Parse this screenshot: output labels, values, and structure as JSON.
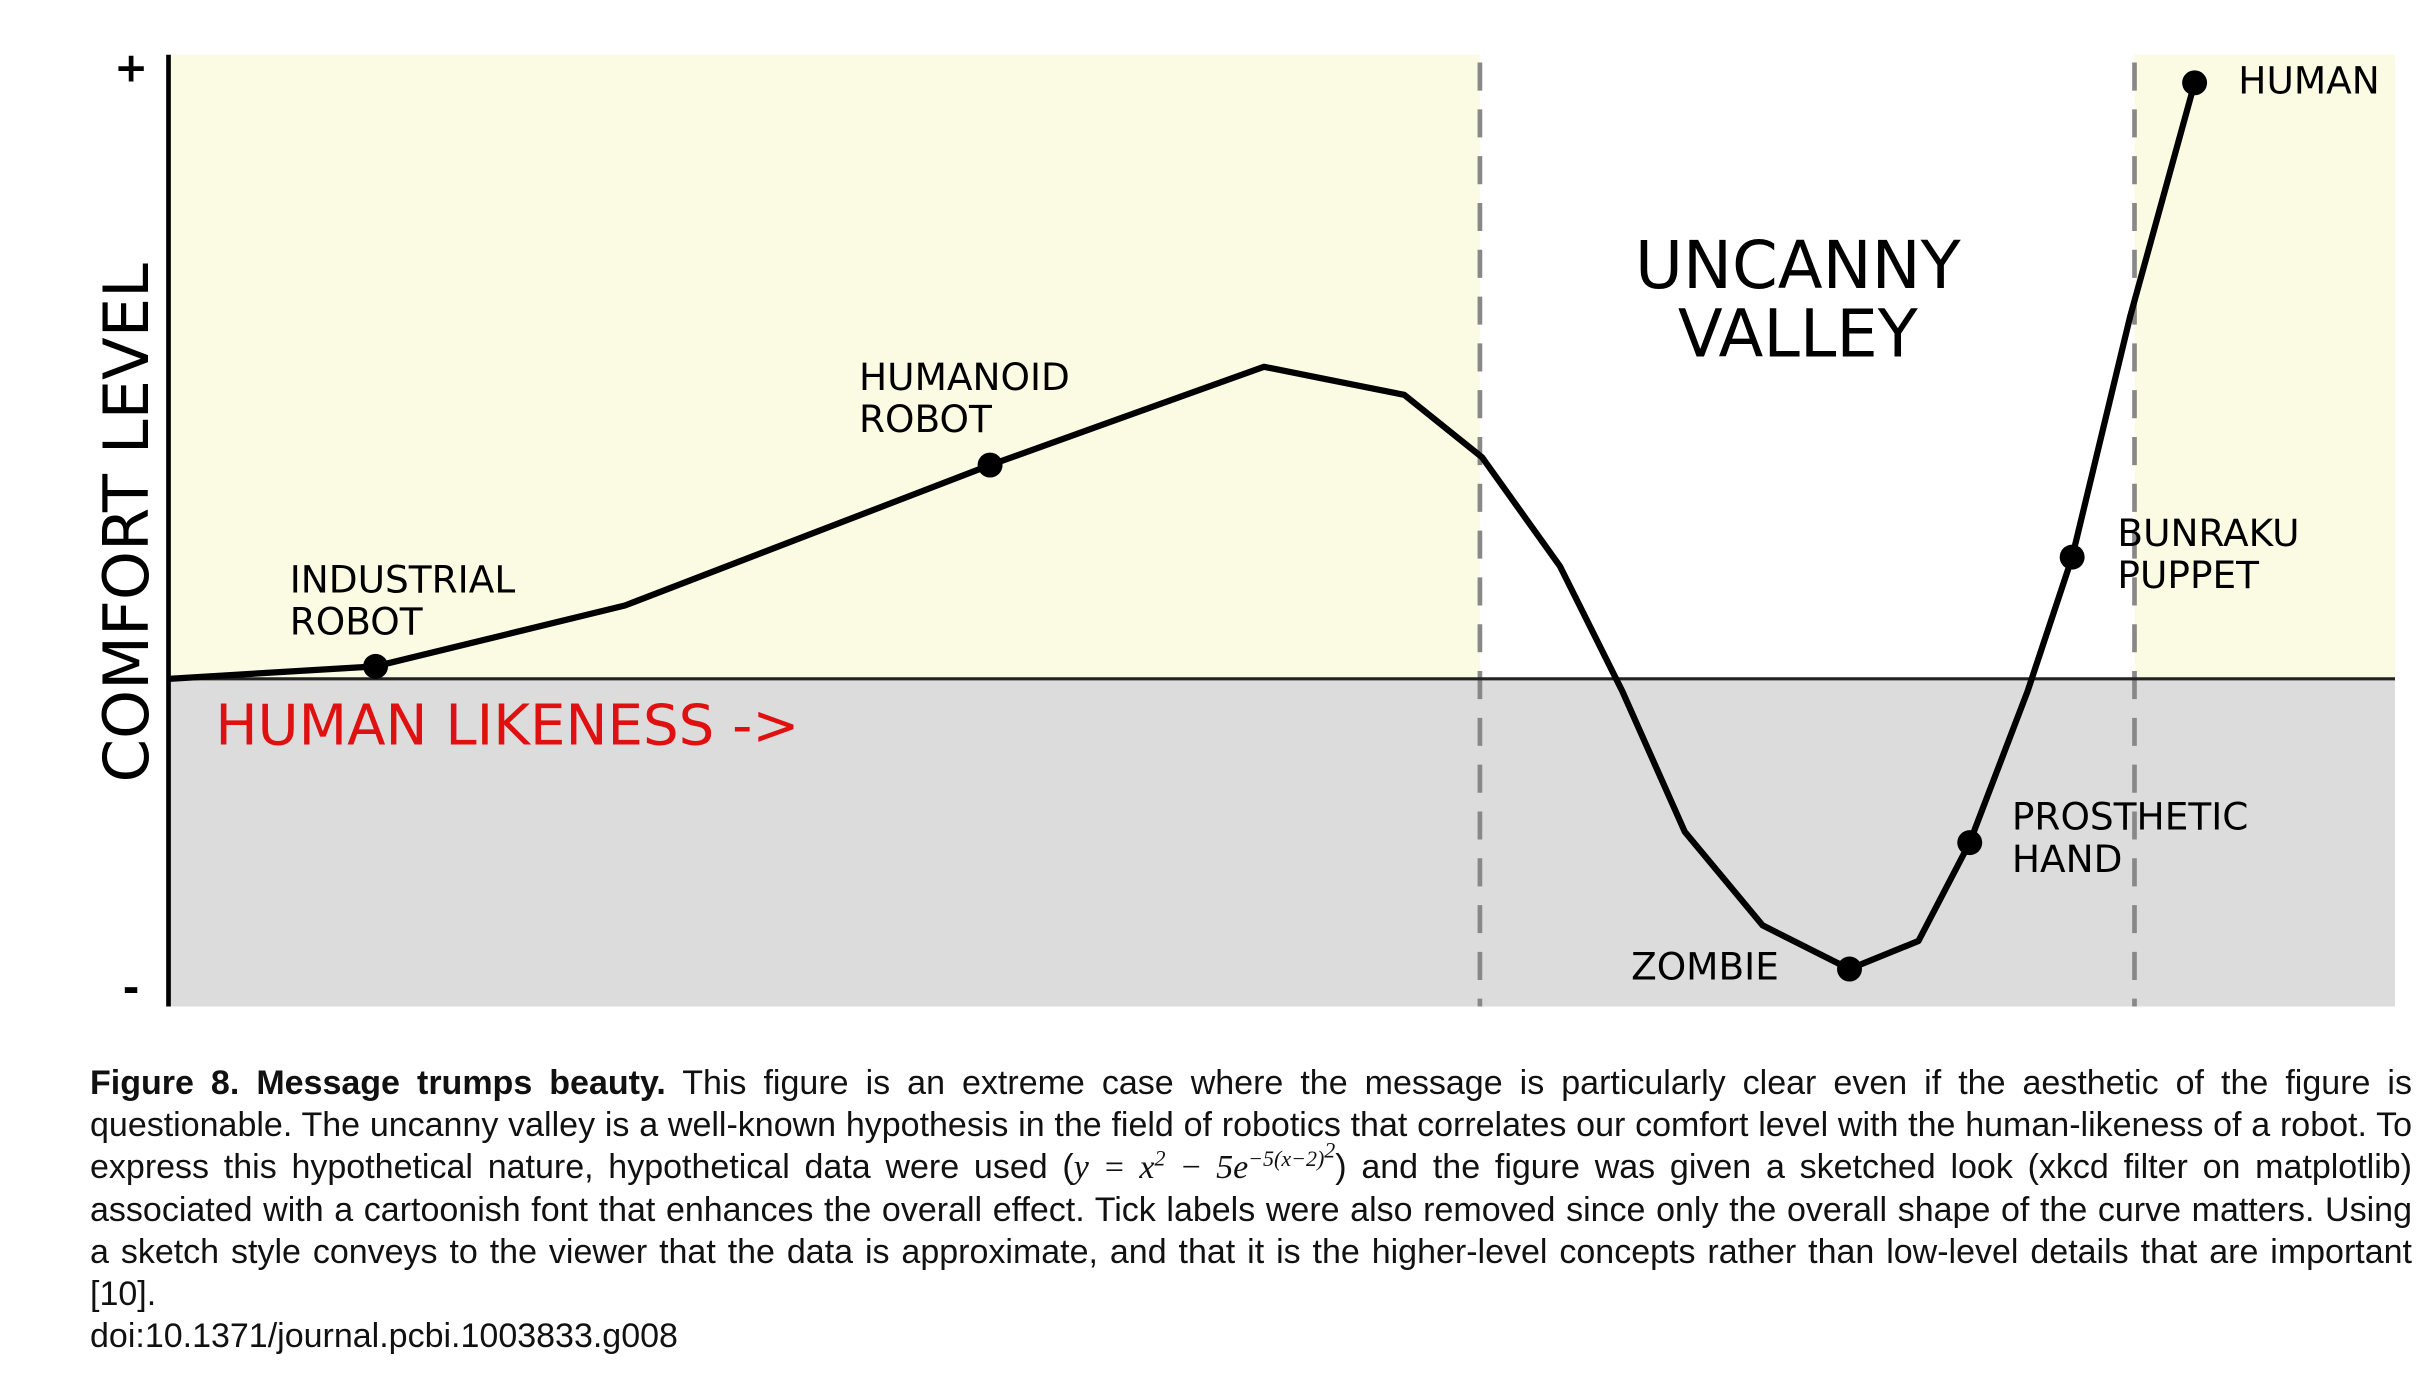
{
  "chart_data": {
    "type": "line",
    "ylabel": "COMFORT LEVEL",
    "xlabel": "HUMAN LIKENESS ->",
    "region_label": [
      "UNCANNY",
      "VALLEY"
    ],
    "xlim": [
      0,
      10
    ],
    "ylim": [
      -1.05,
      2.0
    ],
    "yticks": [
      {
        "value": -1,
        "label": "-"
      },
      {
        "value": 1.95,
        "label": "+"
      }
    ],
    "uncanny_region": [
      5.89,
      8.83
    ],
    "color": "#000000",
    "xlabel_color": "#e01010",
    "curve": {
      "x": [
        0,
        0.93,
        2.05,
        3.69,
        4.92,
        5.55,
        5.9,
        6.25,
        6.53,
        6.81,
        7.16,
        7.55,
        7.86,
        8.09,
        8.35,
        8.55,
        8.81,
        9.1
      ],
      "y": [
        0,
        0.04,
        0.235,
        0.685,
        1.0,
        0.91,
        0.71,
        0.36,
        -0.04,
        -0.49,
        -0.79,
        -0.93,
        -0.84,
        -0.525,
        -0.04,
        0.39,
        1.16,
        1.91
      ]
    },
    "points": {
      "labels": [
        [
          "INDUSTRIAL",
          "ROBOT"
        ],
        [
          "HUMANOID",
          "ROBOT"
        ],
        [
          "ZOMBIE"
        ],
        [
          "PROSTHETIC",
          "HAND"
        ],
        [
          "BUNRAKU",
          "PUPPET"
        ],
        [
          "HUMAN"
        ]
      ],
      "x": [
        0.93,
        3.69,
        7.55,
        8.09,
        8.55,
        9.1
      ],
      "y": [
        0.04,
        0.685,
        -0.93,
        -0.525,
        0.39,
        1.91
      ]
    }
  },
  "caption": {
    "title": "Figure 8. Message trumps beauty.",
    "text_before": " This figure is an extreme case where the message is particularly clear even if the aesthetic of the figure is questionable. The uncanny valley is a well-known hypothesis in the field of robotics that correlates our comfort level with the human-likeness of a robot. To express this hypothetical nature, hypothetical data were used (",
    "formula": {
      "base": "y = x",
      "exp1": "2",
      "mid": " − 5e",
      "exp2": "−5(x−2)",
      "exp3": "2"
    },
    "text_after": ") and the figure was given a sketched look (xkcd filter on matplotlib) associated with a cartoonish font that enhances the overall effect. Tick labels were also removed since only the overall shape of the curve matters. Using a sketch style conveys to the viewer that the data is approximate, and that it is the higher-level concepts rather than low-level details that are important [10].",
    "doi": "doi:10.1371/journal.pcbi.1003833.g008"
  }
}
